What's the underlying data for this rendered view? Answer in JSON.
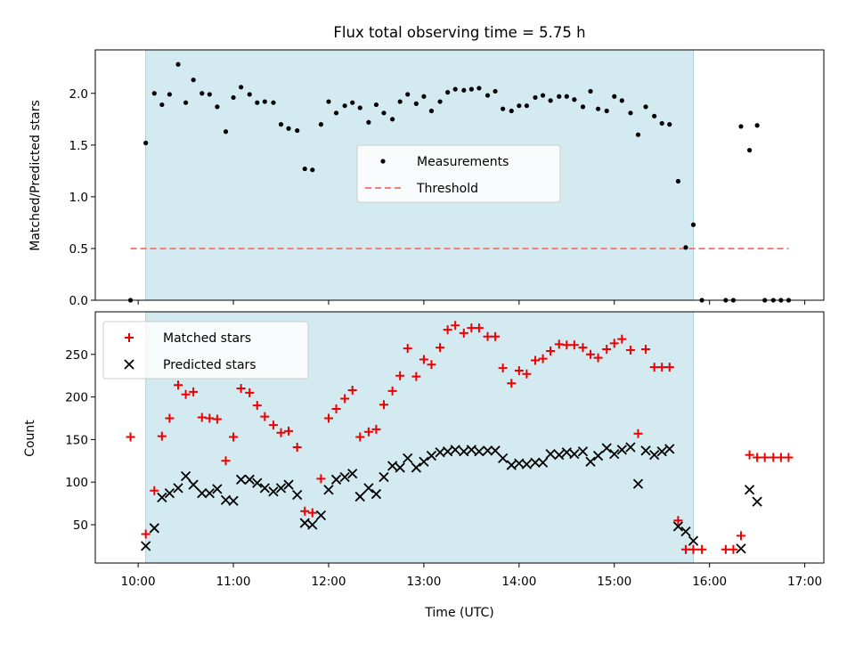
{
  "chart_data": {
    "type": "scatter",
    "title": "Flux total observing time = 5.75 h",
    "xlabel": "Time (UTC)",
    "x_unit": "hours UTC",
    "xlim": [
      9.55,
      17.2
    ],
    "xticks": [
      10,
      11,
      12,
      13,
      14,
      15,
      16,
      17
    ],
    "xtick_labels": [
      "10:00",
      "11:00",
      "12:00",
      "13:00",
      "14:00",
      "15:00",
      "16:00",
      "17:00"
    ],
    "shaded_interval": [
      10.08,
      15.83
    ],
    "colors": {
      "shade": "#d4eaf1",
      "shade_edge": "#a9d0dc",
      "measurements": "#000000",
      "threshold": "#f08080",
      "matched": "#ee0000",
      "predicted": "#000000"
    },
    "panels": [
      {
        "id": "ratio",
        "ylabel": "Matched/Predicted stars",
        "ylim": [
          0,
          2.42
        ],
        "yticks": [
          0.0,
          0.5,
          1.0,
          1.5,
          2.0
        ],
        "ytick_labels": [
          "0.0",
          "0.5",
          "1.0",
          "1.5",
          "2.0"
        ],
        "legend": {
          "location": "center",
          "entries": [
            "Measurements",
            "Threshold"
          ]
        },
        "threshold": {
          "name": "Threshold",
          "value": 0.5,
          "x_range": [
            9.92,
            16.83
          ]
        },
        "series": [
          {
            "name": "Measurements",
            "marker": "dot",
            "x": [
              9.92,
              10.08,
              10.17,
              10.25,
              10.33,
              10.42,
              10.5,
              10.58,
              10.67,
              10.75,
              10.83,
              10.92,
              11.0,
              11.08,
              11.17,
              11.25,
              11.33,
              11.42,
              11.5,
              11.58,
              11.67,
              11.75,
              11.83,
              11.92,
              12.0,
              12.08,
              12.17,
              12.25,
              12.33,
              12.42,
              12.5,
              12.58,
              12.67,
              12.75,
              12.83,
              12.92,
              13.0,
              13.08,
              13.17,
              13.25,
              13.33,
              13.42,
              13.5,
              13.58,
              13.67,
              13.75,
              13.83,
              13.92,
              14.0,
              14.08,
              14.17,
              14.25,
              14.33,
              14.42,
              14.5,
              14.58,
              14.67,
              14.75,
              14.83,
              14.92,
              15.0,
              15.08,
              15.17,
              15.25,
              15.33,
              15.42,
              15.5,
              15.58,
              15.67,
              15.75,
              15.83,
              15.92,
              16.17,
              16.25,
              16.33,
              16.42,
              16.5,
              16.58,
              16.67,
              16.75,
              16.83
            ],
            "y": [
              0.0,
              1.52,
              2.0,
              1.89,
              1.99,
              2.28,
              1.91,
              2.13,
              2.0,
              1.99,
              1.87,
              1.63,
              1.96,
              2.06,
              1.99,
              1.91,
              1.92,
              1.91,
              1.7,
              1.66,
              1.64,
              1.27,
              1.26,
              1.7,
              1.92,
              1.81,
              1.88,
              1.91,
              1.86,
              1.72,
              1.89,
              1.81,
              1.75,
              1.92,
              1.99,
              1.9,
              1.97,
              1.83,
              1.92,
              2.01,
              2.04,
              2.03,
              2.04,
              2.05,
              1.98,
              2.02,
              1.85,
              1.83,
              1.88,
              1.88,
              1.96,
              1.98,
              1.93,
              1.97,
              1.97,
              1.94,
              1.87,
              2.02,
              1.85,
              1.83,
              1.97,
              1.93,
              1.81,
              1.6,
              1.87,
              1.78,
              1.71,
              1.7,
              1.15,
              0.51,
              0.73,
              0.0,
              0.0,
              0.0,
              1.68,
              1.45,
              1.69,
              0.0,
              0.0,
              0.0,
              0.0
            ]
          }
        ]
      },
      {
        "id": "count",
        "ylabel": "Count",
        "ylim": [
          5,
          300
        ],
        "yticks": [
          50,
          100,
          150,
          200,
          250
        ],
        "ytick_labels": [
          "50",
          "100",
          "150",
          "200",
          "250"
        ],
        "legend": {
          "location": "upper left",
          "entries": [
            "Matched stars",
            "Predicted stars"
          ]
        },
        "series": [
          {
            "name": "Matched stars",
            "marker": "plus",
            "x": [
              9.92,
              10.08,
              10.17,
              10.25,
              10.33,
              10.42,
              10.5,
              10.58,
              10.67,
              10.75,
              10.83,
              10.92,
              11.0,
              11.08,
              11.17,
              11.25,
              11.33,
              11.42,
              11.5,
              11.58,
              11.67,
              11.75,
              11.83,
              11.92,
              12.0,
              12.08,
              12.17,
              12.25,
              12.33,
              12.42,
              12.5,
              12.58,
              12.67,
              12.75,
              12.83,
              12.92,
              13.0,
              13.08,
              13.17,
              13.25,
              13.33,
              13.42,
              13.5,
              13.58,
              13.67,
              13.75,
              13.83,
              13.92,
              14.0,
              14.08,
              14.17,
              14.25,
              14.33,
              14.42,
              14.5,
              14.58,
              14.67,
              14.75,
              14.83,
              14.92,
              15.0,
              15.08,
              15.17,
              15.25,
              15.33,
              15.42,
              15.5,
              15.58,
              15.67,
              15.75,
              15.83,
              15.92,
              16.17,
              16.25,
              16.33,
              16.42,
              16.5,
              16.58,
              16.67,
              16.75,
              16.83
            ],
            "y": [
              153,
              39,
              90,
              154,
              175,
              214,
              203,
              206,
              176,
              175,
              174,
              125,
              153,
              210,
              205,
              190,
              177,
              167,
              158,
              160,
              141,
              66,
              64,
              104,
              175,
              186,
              198,
              208,
              153,
              159,
              162,
              191,
              207,
              225,
              257,
              224,
              244,
              238,
              258,
              279,
              284,
              275,
              281,
              281,
              271,
              271,
              234,
              216,
              231,
              227,
              243,
              245,
              254,
              262,
              261,
              261,
              258,
              250,
              246,
              256,
              263,
              268,
              255,
              157,
              256,
              235,
              235,
              235,
              55,
              21,
              21,
              21,
              21,
              21,
              37,
              132,
              129,
              129,
              129,
              129,
              129
            ]
          },
          {
            "name": "Predicted stars",
            "marker": "x",
            "x": [
              10.08,
              10.17,
              10.25,
              10.33,
              10.42,
              10.5,
              10.58,
              10.67,
              10.75,
              10.83,
              10.92,
              11.0,
              11.08,
              11.17,
              11.25,
              11.33,
              11.42,
              11.5,
              11.58,
              11.67,
              11.75,
              11.83,
              11.92,
              12.0,
              12.08,
              12.17,
              12.25,
              12.33,
              12.42,
              12.5,
              12.58,
              12.67,
              12.75,
              12.83,
              12.92,
              13.0,
              13.08,
              13.17,
              13.25,
              13.33,
              13.42,
              13.5,
              13.58,
              13.67,
              13.75,
              13.83,
              13.92,
              14.0,
              14.08,
              14.17,
              14.25,
              14.33,
              14.42,
              14.5,
              14.58,
              14.67,
              14.75,
              14.83,
              14.92,
              15.0,
              15.08,
              15.17,
              15.25,
              15.33,
              15.42,
              15.5,
              15.58,
              15.67,
              15.75,
              15.83,
              16.33,
              16.42,
              16.5
            ],
            "y": [
              25,
              46,
              82,
              87,
              93,
              107,
              97,
              87,
              87,
              92,
              79,
              78,
              103,
              103,
              99,
              93,
              89,
              93,
              97,
              85,
              52,
              50,
              61,
              91,
              103,
              106,
              110,
              83,
              93,
              86,
              106,
              119,
              117,
              128,
              117,
              124,
              131,
              135,
              136,
              138,
              136,
              138,
              136,
              137,
              137,
              128,
              120,
              122,
              121,
              123,
              123,
              133,
              132,
              135,
              133,
              136,
              124,
              131,
              140,
              133,
              138,
              141,
              98,
              137,
              132,
              136,
              139,
              48,
              42,
              31,
              22,
              91,
              77
            ]
          }
        ]
      }
    ]
  }
}
